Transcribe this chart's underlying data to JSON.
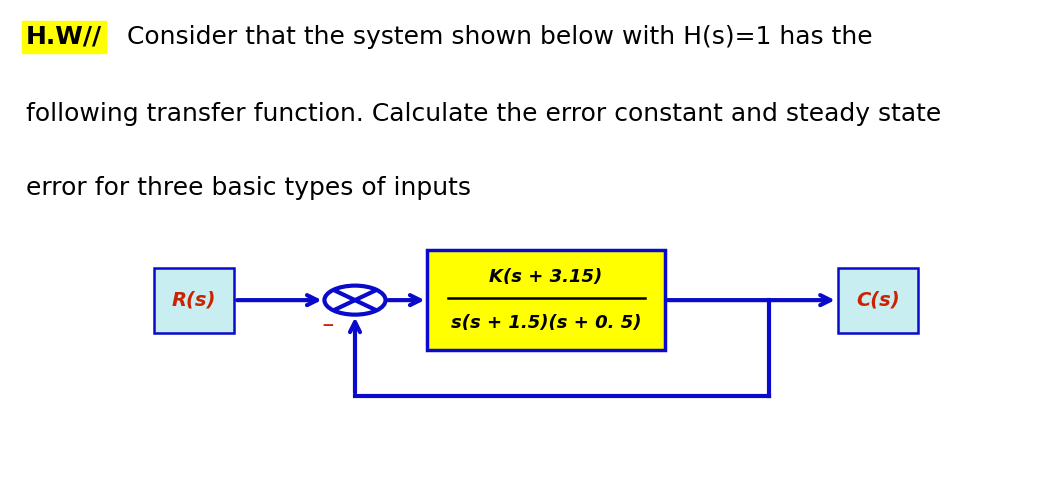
{
  "bg_color": "#ffffff",
  "title_hw_text": "H.W//",
  "title_hw_bg": "#ffff00",
  "title_line1_rest": " Consider that the system shown below with H(s)=1 has the",
  "title_line2": "following transfer function. Calculate the error constant and steady state",
  "title_line3": "error for three basic types of inputs",
  "title_fontsize": 18,
  "rs_label": "R(s)",
  "cs_label": "C(s)",
  "box_label_num": "K(s + 3.15)",
  "box_label_den": "s(s + 1.5)(s + 0. 5)",
  "box_bg": "#ffff00",
  "box_border": "#0a0acc",
  "rs_box_bg": "#c8eef2",
  "cs_box_bg": "#c8eef2",
  "rs_color": "#cc2200",
  "cs_color": "#cc2200",
  "arrow_color": "#0a0acc",
  "summing_color": "#0a0acc",
  "minus_color": "#cc2200",
  "line_width": 3.0,
  "fig_width": 10.38,
  "fig_height": 4.96,
  "dpi": 100
}
